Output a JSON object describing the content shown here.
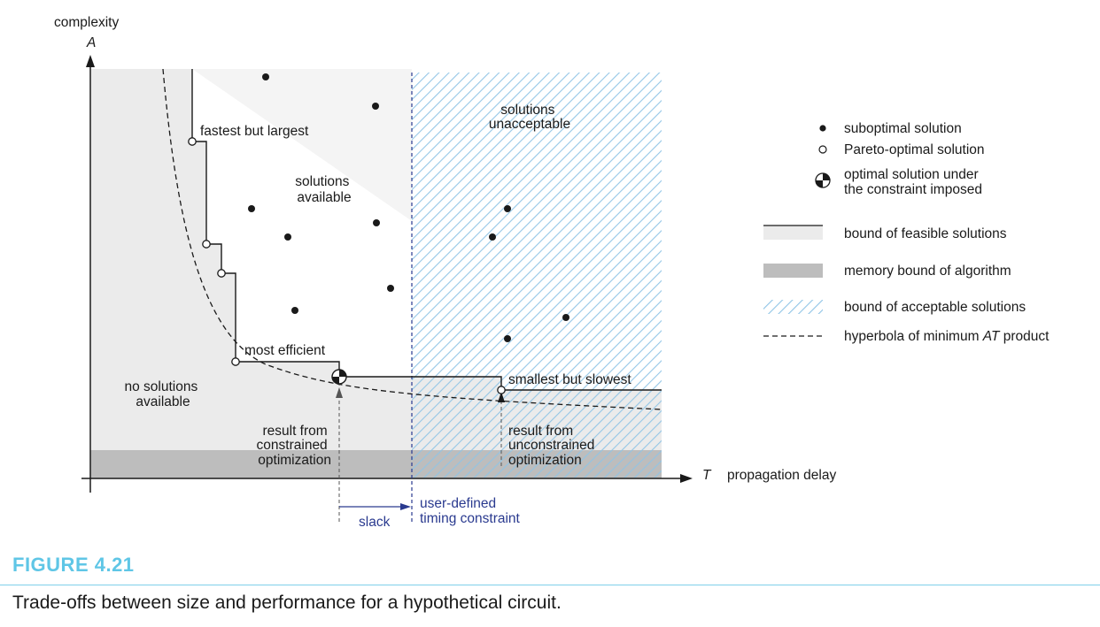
{
  "axes": {
    "y_label_word": "complexity",
    "y_symbol": "A",
    "x_symbol": "T",
    "x_label_word": "propagation delay"
  },
  "regions": {
    "no_solutions": [
      "no solutions",
      "available"
    ],
    "solutions_available": [
      "solutions",
      "available"
    ],
    "solutions_unacceptable": [
      "solutions",
      "unacceptable"
    ]
  },
  "annotations": {
    "fastest": "fastest but largest",
    "most_efficient": "most efficient",
    "smallest": "smallest but slowest",
    "constrained": [
      "result from",
      "constrained",
      "optimization"
    ],
    "unconstrained": [
      "result from",
      "unconstrained",
      "optimization"
    ],
    "slack": "slack",
    "timing_constraint": [
      "user-defined",
      "timing constraint"
    ]
  },
  "legend": {
    "suboptimal": "suboptimal solution",
    "pareto": "Pareto-optimal solution",
    "optimal": [
      "optimal solution under",
      "the constraint imposed"
    ],
    "feasible": "bound of feasible solutions",
    "memory": "memory bound of algorithm",
    "acceptable": "bound of acceptable solutions",
    "hyperbola_prefix": "hyperbola of minimum",
    "hyperbola_symbol": "AT",
    "hyperbola_suffix": "product"
  },
  "colors": {
    "feasible_fill": "#ebebeb",
    "memory_fill": "#bdbdbd",
    "hatch": "#8fc4e6",
    "constraint_blue": "#2a3a8f",
    "figure_label": "#5fc6e6"
  },
  "figure": {
    "label": "FIGURE 4.21",
    "caption": "Trade-offs between size and performance for a hypothetical circuit."
  }
}
